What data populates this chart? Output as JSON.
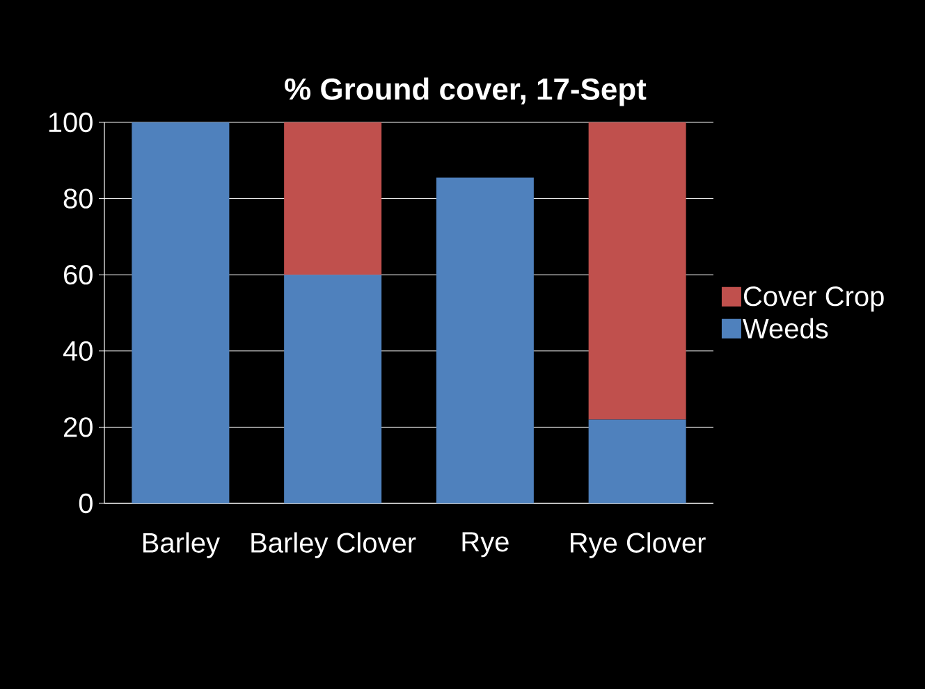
{
  "chart_data": {
    "type": "bar",
    "title": "% Ground cover, 17-Sept",
    "stacked": true,
    "categories": [
      "Barley",
      "Barley Clover",
      "Rye",
      "Rye Clover"
    ],
    "series": [
      {
        "name": "Weeds",
        "color": "#4f81bd",
        "values": [
          100,
          60,
          85.5,
          22
        ]
      },
      {
        "name": "Cover Crop",
        "color": "#c0504d",
        "values": [
          0,
          40,
          0,
          78
        ]
      }
    ],
    "ylim": [
      0,
      100
    ],
    "yticks": [
      0,
      20,
      40,
      60,
      80,
      100
    ],
    "grid": "y",
    "legend": "right"
  }
}
